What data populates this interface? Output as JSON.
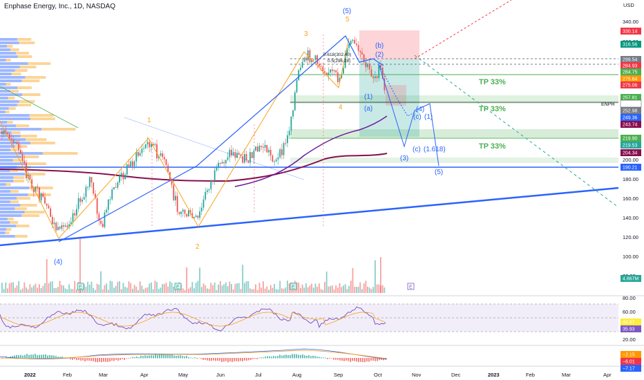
{
  "header": {
    "title": "Enphase Energy, Inc., 1D, NASDAQ",
    "currency": "USD"
  },
  "colors": {
    "wave_blue": "#2962ff",
    "wave_orange": "#f7a21b",
    "tp_green": "#4caf50",
    "stop_red": "#f7525f",
    "ma_maroon": "#880e4f",
    "ma_purple": "#6a1b9a",
    "up_candle": "#26a69a",
    "down_candle": "#ef5350"
  },
  "price_axis": {
    "ticks": [
      "340.00",
      "320.00",
      "300.00",
      "280.00",
      "260.00",
      "240.00",
      "220.00",
      "200.00",
      "180.00",
      "160.00",
      "140.00",
      "120.00",
      "100.00",
      "80.00"
    ],
    "tags": [
      {
        "value": "330.14",
        "color": "#f23645"
      },
      {
        "value": "316.56",
        "color": "#089981"
      },
      {
        "value": "299.54",
        "color": "#787b86"
      },
      {
        "value": "284.93",
        "color": "#f23645"
      },
      {
        "value": "284.75",
        "color": "#4caf50"
      },
      {
        "value": "275.64",
        "color": "#ff9800"
      },
      {
        "value": "275.06",
        "color": "#f23645"
      },
      {
        "value": "257.81",
        "color": "#4caf50"
      },
      {
        "value": "255.15",
        "color": "#ffffff",
        "text": "#131722"
      },
      {
        "value": "252.98",
        "color": "#787b86"
      },
      {
        "value": "249.36",
        "color": "#2962ff"
      },
      {
        "value": "243.74",
        "color": "#880e4f"
      },
      {
        "value": "219.90",
        "color": "#4caf50"
      },
      {
        "value": "219.53",
        "color": "#26a69a"
      },
      {
        "value": "204.34",
        "color": "#880e4f"
      },
      {
        "value": "190.21",
        "color": "#2962ff"
      },
      {
        "value": "4.867M",
        "color": "#26a69a"
      }
    ],
    "symbol": "ENPH"
  },
  "rsi_axis": {
    "ticks": [
      "80.00",
      "60.00",
      "40.00",
      "20.00"
    ],
    "tags": [
      {
        "value": "44.67",
        "color": "#ffeb3b",
        "text": "#131722"
      },
      {
        "value": "35.93",
        "color": "#7e57c2"
      }
    ]
  },
  "macd_axis": {
    "tags": [
      {
        "value": "−2.15",
        "color": "#ff9800"
      },
      {
        "value": "−6.01",
        "color": "#f23645"
      },
      {
        "value": "−7.17",
        "color": "#2962ff"
      }
    ]
  },
  "time_axis": [
    "2022",
    "Feb",
    "Mar",
    "Apr",
    "May",
    "Jun",
    "Jul",
    "Aug",
    "Sep",
    "Oct",
    "Nov",
    "Dec",
    "2023",
    "Feb",
    "Mar",
    "Apr"
  ],
  "annotations": {
    "tp1": "TP 33%",
    "tp2": "TP 33%",
    "tp3": "TP 33%",
    "fib1": "0.618(302.40)",
    "fib2": "0.5(296.28)",
    "waves": {
      "w5_top_blue": "(5)",
      "w5_top_orange": "5",
      "w3": "3",
      "w1": "1",
      "w2": "2",
      "w4": "4",
      "w4_blue": "(4)",
      "b": "(b)",
      "two": "(2)",
      "one": "(1)",
      "a": "(a)",
      "c1": "(c)",
      "one_b": "(1)",
      "four_b": "(4)",
      "three": "(3)",
      "c2": "(c)",
      "fib_ext": "(1.618)",
      "five": "(5)"
    },
    "earnings": "E"
  }
}
